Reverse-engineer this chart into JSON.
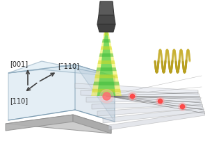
{
  "bg_color": "#ffffff",
  "crystal_box_color": "#c8dce8",
  "crystal_box_edge": "#7a9ab0",
  "base_color": "#c0c0c0",
  "arrow_color": "#404040",
  "label_001": "[001]",
  "label_110": "[110]",
  "label_bar110": "[¯110]",
  "coil_color": "#b8a020",
  "nv_color": "#cc2020",
  "figsize": [
    3.05,
    2.23
  ],
  "dpi": 100
}
